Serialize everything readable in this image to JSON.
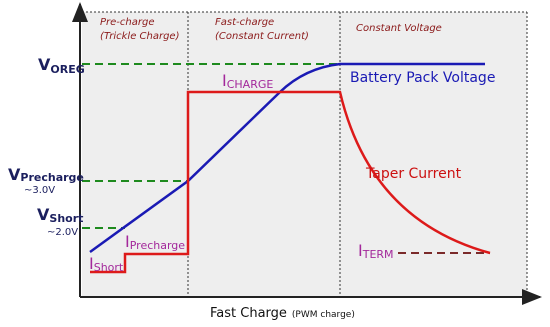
{
  "phases": [
    {
      "title": "Pre-charge",
      "subtitle": "(Trickle Charge)"
    },
    {
      "title": "Fast-charge",
      "subtitle": "(Constant Current)"
    },
    {
      "title": "Constant Voltage"
    }
  ],
  "voltage_levels": [
    {
      "symbol": "V",
      "subscript": "OREG"
    },
    {
      "symbol": "V",
      "subscript": "Precharge",
      "note": "~3.0V"
    },
    {
      "symbol": "V",
      "subscript": "Short",
      "note": "~2.0V"
    }
  ],
  "current_labels": [
    {
      "symbol": "I",
      "subscript": "CHARGE"
    },
    {
      "symbol": "I",
      "subscript": "Precharge"
    },
    {
      "symbol": "I",
      "subscript": "Short"
    },
    {
      "symbol": "I",
      "subscript": "TERM"
    }
  ],
  "curve_labels": {
    "voltage": "Battery Pack Voltage",
    "current": "Taper Current"
  },
  "x_axis": {
    "label": "Fast Charge",
    "note": "(PWM charge)"
  }
}
